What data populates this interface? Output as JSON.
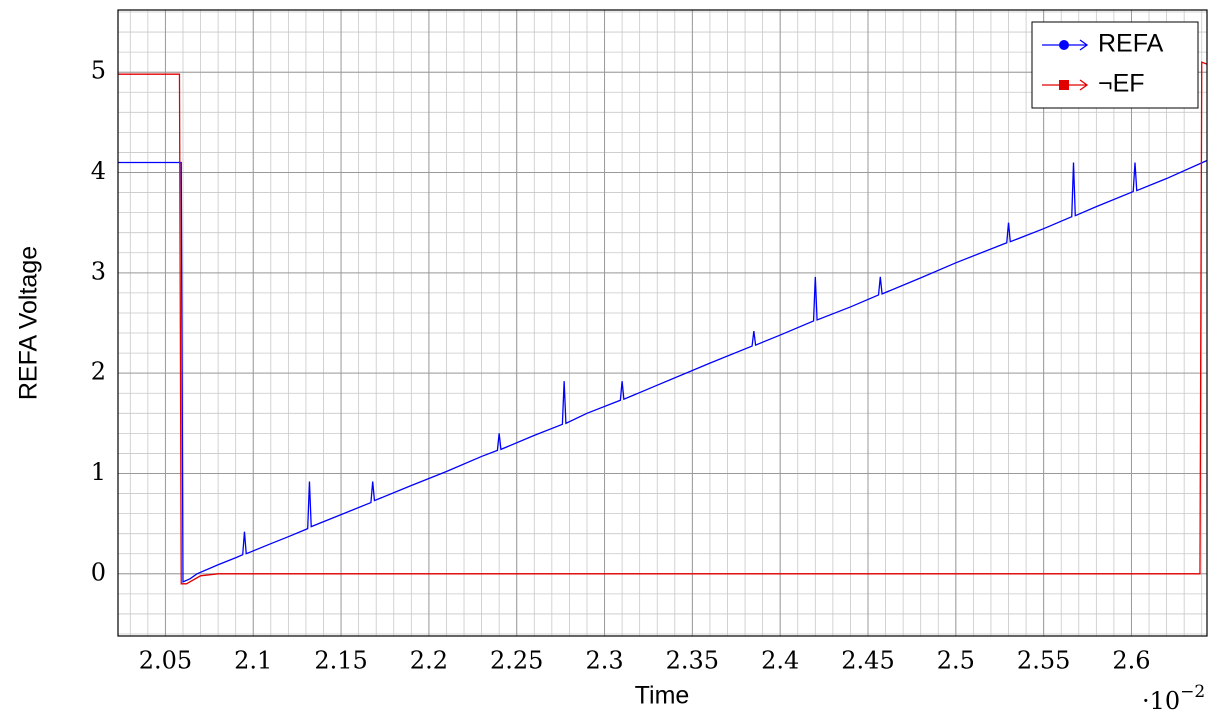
{
  "chart_data": {
    "type": "line",
    "x_label": "Time",
    "y_label": "REFA Voltage",
    "x_multiplier": {
      "base": "·10",
      "exponent": "−2"
    },
    "xlim": [
      2.023,
      2.643
    ],
    "ylim": [
      -0.62,
      5.62
    ],
    "xticks": [
      2.05,
      2.1,
      2.15,
      2.2,
      2.25,
      2.3,
      2.35,
      2.4,
      2.45,
      2.5,
      2.55,
      2.6
    ],
    "yticks": [
      0,
      1,
      2,
      3,
      4,
      5
    ],
    "grid": true,
    "minor_grid_per_interval": 4,
    "legend_position": "north east",
    "series": [
      {
        "name": "REFA",
        "color": "#0000ff",
        "marker": "circle",
        "x": [
          2.023,
          2.059,
          2.06,
          2.064,
          2.068,
          2.08,
          2.09,
          2.094,
          2.095,
          2.096,
          2.11,
          2.12,
          2.131,
          2.132,
          2.133,
          2.15,
          2.167,
          2.168,
          2.169,
          2.19,
          2.21,
          2.23,
          2.239,
          2.24,
          2.241,
          2.26,
          2.276,
          2.277,
          2.278,
          2.29,
          2.309,
          2.31,
          2.311,
          2.33,
          2.36,
          2.384,
          2.385,
          2.386,
          2.4,
          2.419,
          2.42,
          2.421,
          2.44,
          2.456,
          2.457,
          2.458,
          2.48,
          2.5,
          2.529,
          2.53,
          2.531,
          2.55,
          2.566,
          2.567,
          2.568,
          2.58,
          2.601,
          2.602,
          2.603,
          2.62,
          2.643
        ],
        "values": [
          4.1,
          4.1,
          -0.08,
          -0.05,
          0.0,
          0.09,
          0.16,
          0.19,
          0.42,
          0.2,
          0.3,
          0.37,
          0.45,
          0.92,
          0.47,
          0.59,
          0.71,
          0.92,
          0.73,
          0.88,
          1.02,
          1.17,
          1.23,
          1.4,
          1.24,
          1.38,
          1.49,
          1.92,
          1.5,
          1.6,
          1.73,
          1.92,
          1.74,
          1.88,
          2.1,
          2.27,
          2.42,
          2.28,
          2.38,
          2.52,
          2.96,
          2.53,
          2.66,
          2.78,
          2.96,
          2.79,
          2.95,
          3.1,
          3.3,
          3.5,
          3.31,
          3.44,
          3.56,
          4.1,
          3.57,
          3.66,
          3.81,
          4.1,
          3.82,
          3.94,
          4.12
        ]
      },
      {
        "name": "¬EF",
        "color": "#e00000",
        "marker": "square",
        "x": [
          2.023,
          2.058,
          2.059,
          2.062,
          2.07,
          2.08,
          2.639,
          2.64,
          2.643
        ],
        "values": [
          4.98,
          4.98,
          -0.1,
          -0.1,
          -0.02,
          0,
          0,
          5.1,
          5.08
        ]
      }
    ]
  }
}
